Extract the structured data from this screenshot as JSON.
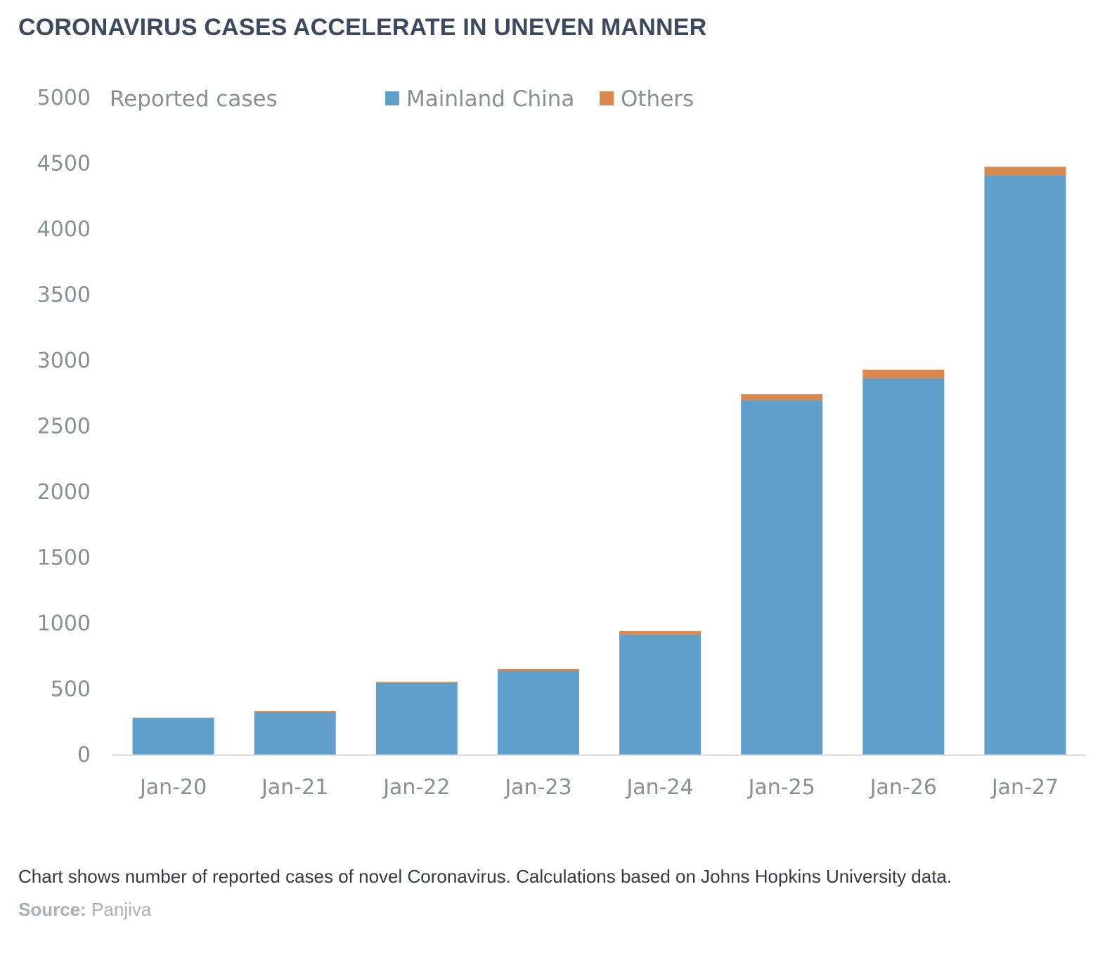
{
  "title": "CORONAVIRUS CASES ACCELERATE IN UNEVEN MANNER",
  "caption": "Chart shows number of reported cases of novel Coronavirus. Calculations based on  Johns Hopkins University data.",
  "source": {
    "label": "Source:",
    "value": " Panjiva"
  },
  "colors": {
    "mainland_china": "#5f9fc9",
    "others": "#d9884f",
    "axis_text": "#8a8f94",
    "title": "#3b4a5e"
  },
  "chart_data": {
    "type": "bar",
    "stacked": true,
    "ylabel": "Reported cases",
    "ylim": [
      0,
      5000
    ],
    "yticks": [
      0,
      500,
      1000,
      1500,
      2000,
      2500,
      3000,
      3500,
      4000,
      4500,
      5000
    ],
    "categories": [
      "Jan-20",
      "Jan-21",
      "Jan-22",
      "Jan-23",
      "Jan-24",
      "Jan-25",
      "Jan-26",
      "Jan-27"
    ],
    "series": [
      {
        "name": "Mainland China",
        "values": [
          278,
          326,
          547,
          639,
          916,
          2700,
          2864,
          4409
        ]
      },
      {
        "name": "Others",
        "values": [
          4,
          6,
          8,
          14,
          25,
          44,
          66,
          65
        ]
      }
    ],
    "legend_position": "top",
    "grid": false
  }
}
